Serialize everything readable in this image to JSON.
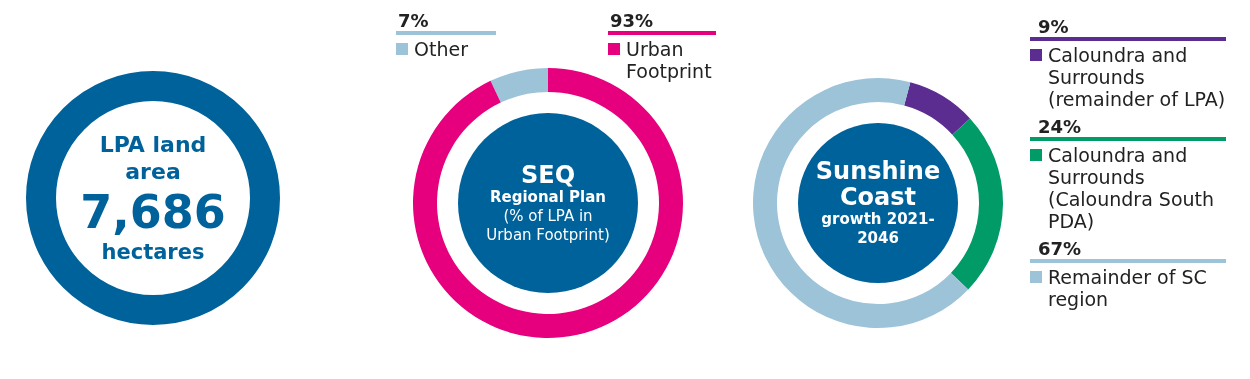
{
  "chart_data": [
    {
      "type": "other",
      "title": "LPA land area",
      "annotations": [
        "7,686",
        "hectares"
      ]
    },
    {
      "type": "donut",
      "title": "SEQ",
      "subtitle": "Regional Plan",
      "annotations": [
        "(% of LPA in Urban Footprint)"
      ],
      "categories": [
        "Other",
        "Urban Footprint"
      ],
      "values": [
        7,
        93
      ],
      "colors": [
        "#9dc3d8",
        "#e6007e"
      ],
      "value_labels": [
        "7%",
        "93%"
      ],
      "legend": "top"
    },
    {
      "type": "donut",
      "title": "Sunshine Coast",
      "subtitle": "growth 2021-2046",
      "categories": [
        "Caloundra and Surrounds (remainder of LPA)",
        "Caloundra and Surrounds (Caloundra South PDA)",
        "Remainder of SC region"
      ],
      "values": [
        9,
        24,
        67
      ],
      "colors": [
        "#5c2d91",
        "#009b67",
        "#9dc3d8"
      ],
      "value_labels": [
        "9%",
        "24%",
        "67%"
      ],
      "legend": "right"
    }
  ]
}
